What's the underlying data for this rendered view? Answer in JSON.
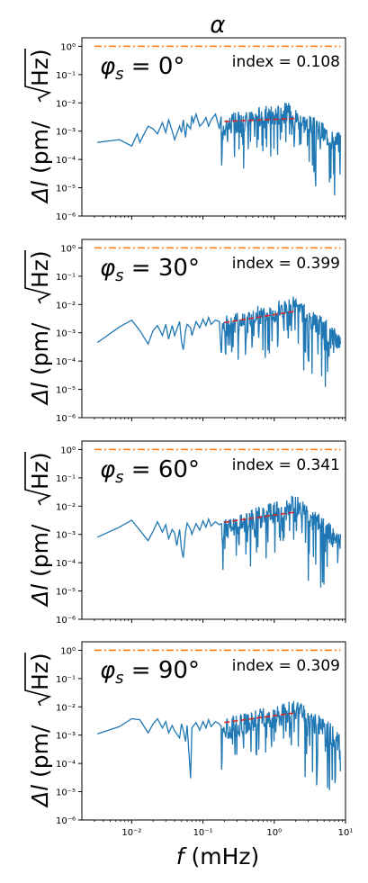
{
  "figure": {
    "title": "α",
    "xlabel_sym": "f",
    "xlabel_unit": " (mHz)",
    "ylabel_sym": "Δl",
    "ylabel_unit_open": "(pm/",
    "ylabel_unit_close": "Hz)",
    "colors": {
      "spectrum": "#1f77b4",
      "fit": "#d62728",
      "level": "#ff7f0e"
    }
  },
  "chart_data": [
    {
      "type": "line",
      "xscale": "log",
      "yscale": "log",
      "xlim": [
        0.002,
        10
      ],
      "ylim": [
        1e-06,
        2
      ],
      "annotation_phi": "φs = 0°",
      "phi_value": "0",
      "annotation_index": "index = 0.108",
      "index": 0.108,
      "reference_level": 1.0,
      "fit_line": {
        "x": [
          0.2,
          2.0
        ],
        "y": [
          0.0022,
          0.0028
        ]
      },
      "yticks": [
        "10⁰",
        "10⁻¹",
        "10⁻²",
        "10⁻³",
        "10⁻⁴",
        "10⁻⁵",
        "10⁻⁶"
      ],
      "spectrum_lowfreq": {
        "x": [
          0.0033,
          0.0067,
          0.01,
          0.012,
          0.013,
          0.017,
          0.02,
          0.023,
          0.027,
          0.03,
          0.033,
          0.037,
          0.04,
          0.047,
          0.05,
          0.053,
          0.057,
          0.06,
          0.067,
          0.07,
          0.073,
          0.08,
          0.09,
          0.1,
          0.11,
          0.12,
          0.13,
          0.15,
          0.17
        ],
        "y": [
          0.0004,
          0.0005,
          0.0003,
          0.0008,
          0.0004,
          0.0015,
          0.0012,
          0.0008,
          0.002,
          0.0009,
          0.0025,
          0.001,
          0.0005,
          0.0015,
          0.0009,
          0.0025,
          0.0006,
          0.0018,
          0.0012,
          0.0035,
          0.002,
          0.004,
          0.0015,
          0.002,
          0.003,
          0.0015,
          0.0025,
          0.004,
          0.0012
        ]
      },
      "spectrum_highfreq": {
        "range": [
          0.18,
          8.5
        ],
        "level_start": 0.002,
        "level_peak": 0.006,
        "peak_x": 1.5,
        "level_end": 0.0005
      }
    },
    {
      "type": "line",
      "xscale": "log",
      "yscale": "log",
      "xlim": [
        0.002,
        10
      ],
      "ylim": [
        1e-06,
        2
      ],
      "annotation_phi": "φs = 30°",
      "phi_value": "30",
      "annotation_index": "index = 0.399",
      "index": 0.399,
      "reference_level": 1.0,
      "fit_line": {
        "x": [
          0.2,
          2.0
        ],
        "y": [
          0.0023,
          0.0058
        ]
      },
      "yticks": [
        "10⁰",
        "10⁻¹",
        "10⁻²",
        "10⁻³",
        "10⁻⁴",
        "10⁻⁵",
        "10⁻⁶"
      ],
      "spectrum_lowfreq": {
        "x": [
          0.0033,
          0.0067,
          0.01,
          0.013,
          0.017,
          0.02,
          0.023,
          0.027,
          0.03,
          0.033,
          0.037,
          0.04,
          0.047,
          0.05,
          0.053,
          0.057,
          0.06,
          0.067,
          0.07,
          0.08,
          0.09,
          0.1,
          0.11,
          0.12,
          0.13,
          0.15,
          0.17
        ],
        "y": [
          0.00045,
          0.0016,
          0.0028,
          0.0012,
          0.0004,
          0.0012,
          0.0018,
          0.0008,
          0.002,
          0.0006,
          0.0018,
          0.0008,
          0.0025,
          0.0005,
          0.00025,
          0.0012,
          0.002,
          0.0015,
          0.0008,
          0.0025,
          0.0015,
          0.003,
          0.0018,
          0.0035,
          0.002,
          0.0028,
          0.0025
        ]
      },
      "spectrum_highfreq": {
        "range": [
          0.18,
          8.5
        ],
        "level_start": 0.002,
        "level_peak": 0.012,
        "peak_x": 2.0,
        "level_end": 0.0006
      }
    },
    {
      "type": "line",
      "xscale": "log",
      "yscale": "log",
      "xlim": [
        0.002,
        10
      ],
      "ylim": [
        1e-06,
        2
      ],
      "annotation_phi": "φs = 60°",
      "phi_value": "60",
      "annotation_index": "index = 0.341",
      "index": 0.341,
      "reference_level": 1.0,
      "fit_line": {
        "x": [
          0.2,
          2.0
        ],
        "y": [
          0.0027,
          0.0062
        ]
      },
      "yticks": [
        "10⁰",
        "10⁻¹",
        "10⁻²",
        "10⁻³",
        "10⁻⁴",
        "10⁻⁵",
        "10⁻⁶"
      ],
      "spectrum_lowfreq": {
        "x": [
          0.0033,
          0.0067,
          0.01,
          0.013,
          0.017,
          0.02,
          0.023,
          0.027,
          0.03,
          0.033,
          0.037,
          0.04,
          0.043,
          0.047,
          0.05,
          0.053,
          0.057,
          0.06,
          0.067,
          0.07,
          0.08,
          0.09,
          0.1,
          0.11,
          0.12,
          0.13,
          0.15,
          0.17
        ],
        "y": [
          0.0008,
          0.0018,
          0.0032,
          0.0014,
          0.0006,
          0.0013,
          0.0028,
          0.0012,
          0.0022,
          0.0007,
          0.0015,
          0.0011,
          0.0004,
          0.0015,
          0.0003,
          0.00015,
          0.0012,
          0.0025,
          0.0015,
          0.001,
          0.0024,
          0.0014,
          0.003,
          0.0018,
          0.0035,
          0.002,
          0.0028,
          0.0022
        ]
      },
      "spectrum_highfreq": {
        "range": [
          0.18,
          8.5
        ],
        "level_start": 0.002,
        "level_peak": 0.013,
        "peak_x": 2.0,
        "level_end": 0.0007
      }
    },
    {
      "type": "line",
      "xscale": "log",
      "yscale": "log",
      "xlim": [
        0.002,
        10
      ],
      "ylim": [
        1e-06,
        2
      ],
      "annotation_phi": "φs = 90°",
      "phi_value": "90",
      "annotation_index": "index = 0.309",
      "index": 0.309,
      "reference_level": 1.0,
      "fit_line": {
        "x": [
          0.2,
          2.0
        ],
        "y": [
          0.0028,
          0.0062
        ]
      },
      "yticks": [
        "10⁰",
        "10⁻¹",
        "10⁻²",
        "10⁻³",
        "10⁻⁴",
        "10⁻⁵",
        "10⁻⁶"
      ],
      "xticks": [
        "10⁻²",
        "10⁻¹",
        "10⁰",
        "10¹"
      ],
      "spectrum_lowfreq": {
        "x": [
          0.0033,
          0.0067,
          0.01,
          0.013,
          0.017,
          0.02,
          0.023,
          0.027,
          0.03,
          0.033,
          0.037,
          0.04,
          0.047,
          0.05,
          0.053,
          0.057,
          0.06,
          0.067,
          0.07,
          0.08,
          0.09,
          0.1,
          0.11,
          0.12,
          0.13,
          0.15,
          0.17
        ],
        "y": [
          0.0011,
          0.002,
          0.0038,
          0.0035,
          0.0012,
          0.0025,
          0.0038,
          0.0018,
          0.003,
          0.0012,
          0.0022,
          0.0014,
          0.0008,
          0.0025,
          0.0015,
          0.0006,
          0.0022,
          3e-05,
          0.0018,
          0.0028,
          0.0015,
          0.003,
          0.0018,
          0.0035,
          0.002,
          0.003,
          0.0025
        ]
      },
      "spectrum_highfreq": {
        "range": [
          0.18,
          8.5
        ],
        "level_start": 0.002,
        "level_peak": 0.01,
        "peak_x": 2.0,
        "level_end": 0.0008
      }
    }
  ]
}
